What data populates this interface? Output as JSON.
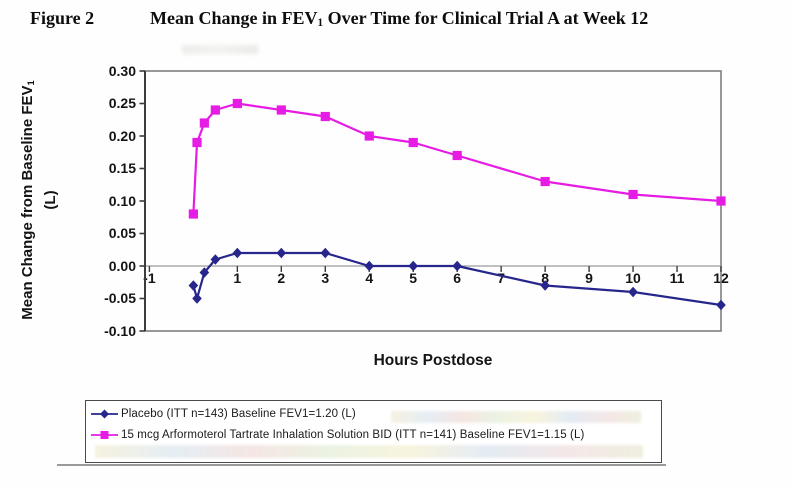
{
  "figure": {
    "label": "Figure 2",
    "title_pre": "Mean Change in FEV",
    "title_sub": "1",
    "title_post": " Over Time for Clinical Trial A at Week 12"
  },
  "axes": {
    "y_title_pre": "Mean Change from Baseline FEV",
    "y_title_sub": "1",
    "y_title_line2": "(L)",
    "x_title": "Hours Postdose",
    "y_tick_labels": [
      "0.30",
      "0.25",
      "0.20",
      "0.15",
      "0.10",
      "0.05",
      "0.00",
      "-0.05",
      "-0.10"
    ],
    "x_tick_labels": [
      "-1",
      "1",
      "2",
      "3",
      "4",
      "5",
      "6",
      "7",
      "8",
      "9",
      "10",
      "11",
      "12"
    ]
  },
  "legend": {
    "entries": [
      {
        "label": "Placebo (ITT n=143) Baseline FEV1=1.20 (L)"
      },
      {
        "label": "15 mcg Arformoterol Tartrate Inhalation Solution BID (ITT n=141) Baseline FEV1=1.15 (L)"
      }
    ]
  },
  "colors": {
    "placebo_navy": "#26268c",
    "arformoterol_magenta": "#e71ce4",
    "plot_frame_gray": "#7f7f7f",
    "zero_line_gray": "#9b9b9b",
    "axis_black": "#3c3c3c"
  },
  "chart_data": {
    "type": "line",
    "title": "Mean Change in FEV1 Over Time for Clinical Trial A at Week 12",
    "xlabel": "Hours Postdose",
    "ylabel": "Mean Change from Baseline FEV1 (L)",
    "xlim": [
      -1.1,
      12
    ],
    "ylim": [
      -0.1,
      0.3
    ],
    "ytick_step": 0.05,
    "grid": false,
    "zero_line": true,
    "legend_position": "bottom-box",
    "series": [
      {
        "name": "Placebo (ITT n=143) Baseline FEV1=1.20 (L)",
        "marker": "diamond",
        "color": "#26268c",
        "x": [
          0,
          0.083,
          0.25,
          0.5,
          1,
          2,
          3,
          4,
          5,
          6,
          8,
          10,
          12
        ],
        "y": [
          -0.03,
          -0.05,
          -0.01,
          0.01,
          0.02,
          0.02,
          0.02,
          0.0,
          0.0,
          0.0,
          -0.03,
          -0.04,
          -0.06
        ]
      },
      {
        "name": "15 mcg Arformoterol Tartrate Inhalation Solution BID (ITT n=141) Baseline FEV1=1.15 (L)",
        "marker": "square",
        "color": "#e71ce4",
        "x": [
          0,
          0.083,
          0.25,
          0.5,
          1,
          2,
          3,
          4,
          5,
          6,
          8,
          10,
          12
        ],
        "y": [
          0.08,
          0.19,
          0.22,
          0.24,
          0.25,
          0.24,
          0.23,
          0.2,
          0.19,
          0.17,
          0.13,
          0.11,
          0.1
        ]
      }
    ]
  }
}
